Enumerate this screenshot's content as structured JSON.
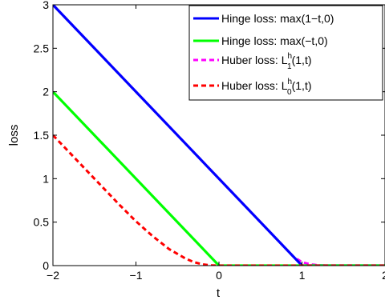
{
  "chart_data": {
    "type": "line",
    "title": "",
    "xlabel": "t",
    "ylabel": "loss",
    "xlim": [
      -2,
      2
    ],
    "ylim": [
      0,
      3
    ],
    "x_ticks": [
      -2,
      -1,
      0,
      1,
      2
    ],
    "y_ticks": [
      0,
      0.5,
      1,
      1.5,
      2,
      2.5,
      3
    ],
    "x_tick_labels": [
      "−2",
      "−1",
      "0",
      "1",
      "2"
    ],
    "y_tick_labels": [
      "0",
      "0.5",
      "1",
      "1.5",
      "2",
      "2.5",
      "3"
    ],
    "grid": false,
    "legend_position": "top-right",
    "series": [
      {
        "name": "Hinge loss: max(1−t,0)",
        "legend_main": "Hinge loss: max(1−t,0)",
        "color": "#0000ff",
        "style": "solid",
        "x": [
          -2,
          1,
          2
        ],
        "y": [
          3,
          0,
          0
        ]
      },
      {
        "name": "Hinge loss: max(−t,0)",
        "legend_main": "Hinge loss: max(−t,0)",
        "color": "#00ff00",
        "style": "solid",
        "x": [
          -2,
          0,
          2
        ],
        "y": [
          2,
          0,
          0
        ]
      },
      {
        "name": "Huber loss: L1h(1,t)",
        "legend_main": "Huber loss: L",
        "legend_sup": "h",
        "legend_sub": "1",
        "legend_tail": "(1,t)",
        "color": "#ff00ff",
        "style": "dashed",
        "x": [
          -2,
          -1.5,
          -1,
          -0.5,
          0,
          0.5,
          0.8,
          0.9,
          1.0,
          1.1,
          1.2,
          1.3,
          1.4,
          1.5,
          1.6,
          1.7,
          1.8,
          2
        ],
        "y": [
          3,
          2.5,
          2,
          1.5,
          1,
          0.5,
          0.2,
          0.1,
          0.04,
          0.015,
          0.004,
          0,
          0,
          0,
          0,
          0,
          0,
          0
        ]
      },
      {
        "name": "Huber loss: L0h(1,t)",
        "legend_main": "Huber loss: L",
        "legend_sup": "h",
        "legend_sub": "0",
        "legend_tail": "(1,t)",
        "color": "#ff0000",
        "style": "dashed",
        "x": [
          -2,
          -1.8,
          -1.6,
          -1.4,
          -1.2,
          -1.0,
          -0.8,
          -0.6,
          -0.4,
          -0.3,
          -0.2,
          -0.1,
          0,
          0.5,
          1,
          2
        ],
        "y": [
          1.5,
          1.3,
          1.1,
          0.9,
          0.7,
          0.51,
          0.34,
          0.19,
          0.08,
          0.04,
          0.015,
          0.003,
          0,
          0,
          0,
          0
        ]
      }
    ]
  }
}
